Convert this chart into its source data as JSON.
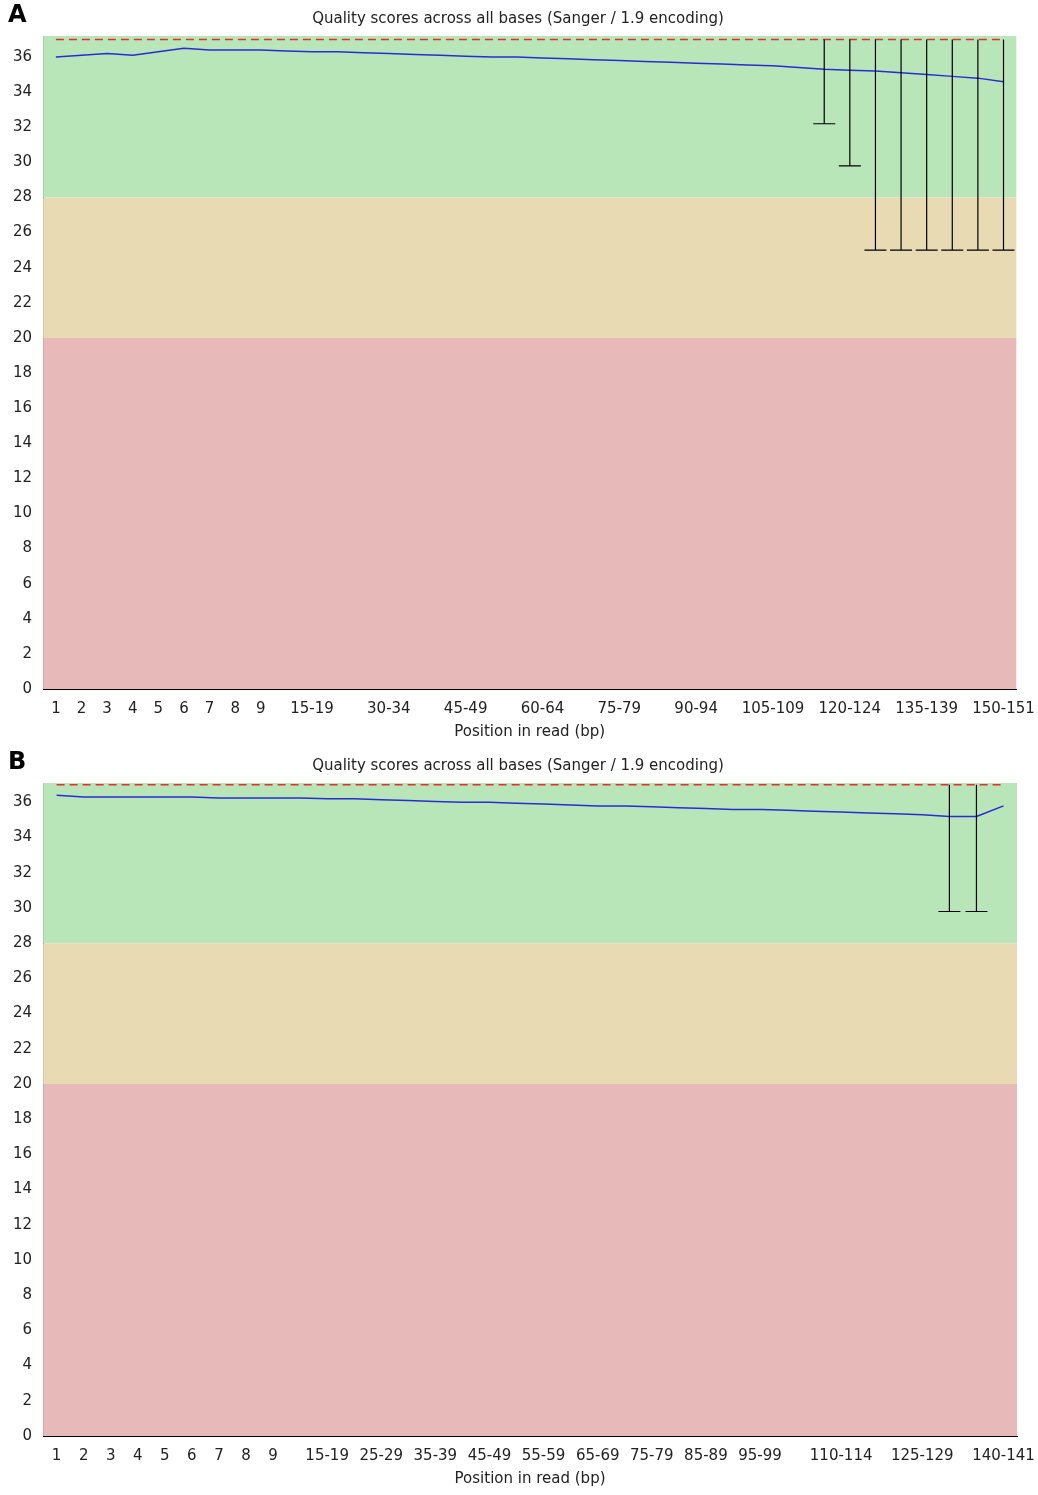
{
  "chart_data": [
    {
      "type": "line",
      "title": "Quality scores across all bases (Sanger / 1.9 encoding)",
      "xlabel": "Position in read (bp)",
      "annotations": [
        "A"
      ],
      "categories": [
        "1",
        "2",
        "3",
        "4",
        "5",
        "6",
        "7",
        "8",
        "9",
        null,
        "15-19",
        null,
        null,
        "30-34",
        null,
        null,
        "45-49",
        null,
        null,
        "60-64",
        null,
        null,
        "75-79",
        null,
        null,
        "90-94",
        null,
        null,
        "105-109",
        null,
        null,
        "120-124",
        null,
        null,
        "135-139",
        null,
        null,
        "150-151"
      ],
      "series": [
        {
          "name": null,
          "color": "#2b2bd6",
          "values": [
            36.0,
            36.1,
            36.2,
            36.1,
            36.3,
            36.5,
            36.4,
            36.4,
            36.4,
            36.35,
            36.3,
            36.3,
            36.25,
            36.2,
            36.15,
            36.1,
            36.05,
            36.0,
            36.0,
            35.95,
            35.9,
            35.85,
            35.8,
            35.75,
            35.7,
            35.65,
            35.6,
            35.55,
            35.5,
            35.4,
            35.3,
            35.25,
            35.2,
            35.1,
            35.0,
            34.9,
            34.8,
            34.6
          ],
          "errors": [
            null,
            null,
            null,
            null,
            null,
            null,
            null,
            null,
            null,
            null,
            null,
            null,
            null,
            null,
            null,
            null,
            null,
            null,
            null,
            null,
            null,
            null,
            null,
            null,
            null,
            null,
            null,
            null,
            null,
            null,
            [
              32.2,
              37
            ],
            [
              29.8,
              37
            ],
            [
              25,
              37
            ],
            [
              25,
              37
            ],
            [
              25,
              37
            ],
            [
              25,
              37
            ],
            [
              25,
              37
            ],
            [
              25,
              37
            ]
          ]
        },
        {
          "name": null,
          "color": "#e03030",
          "line_style": "dashed",
          "values": [
            37,
            37,
            37,
            37,
            37,
            37,
            37,
            37,
            37,
            37,
            37,
            37,
            37,
            37,
            37,
            37,
            37,
            37,
            37,
            37,
            37,
            37,
            37,
            37,
            37,
            37,
            37,
            37,
            37,
            37,
            37,
            37,
            37,
            37,
            37,
            37,
            37,
            37
          ]
        }
      ],
      "ylim": [
        0,
        37.2
      ],
      "yticks": [
        0,
        2,
        4,
        6,
        8,
        10,
        12,
        14,
        16,
        18,
        20,
        22,
        24,
        26,
        28,
        30,
        32,
        34,
        36
      ],
      "grid": false,
      "legend": false,
      "marker": "none",
      "bands": [
        {
          "axis": "y",
          "from": 28,
          "to": 37.2,
          "color": "#b9e6b9"
        },
        {
          "axis": "y",
          "from": 20,
          "to": 28,
          "color": "#e8dbb4"
        },
        {
          "axis": "y",
          "from": 0,
          "to": 20,
          "color": "#e8b9b9"
        }
      ]
    },
    {
      "type": "line",
      "title": "Quality scores across all bases (Sanger / 1.9 encoding)",
      "xlabel": "Position in read (bp)",
      "annotations": [
        "B"
      ],
      "categories": [
        "1",
        "2",
        "3",
        "4",
        "5",
        "6",
        "7",
        "8",
        "9",
        null,
        "15-19",
        null,
        "25-29",
        null,
        "35-39",
        null,
        "45-49",
        null,
        "55-59",
        null,
        "65-69",
        null,
        "75-79",
        null,
        "85-89",
        null,
        "95-99",
        null,
        null,
        "110-114",
        null,
        null,
        "125-129",
        null,
        null,
        "140-141"
      ],
      "series": [
        {
          "name": null,
          "color": "#2b2bd6",
          "values": [
            36.4,
            36.3,
            36.3,
            36.3,
            36.3,
            36.3,
            36.25,
            36.25,
            36.25,
            36.25,
            36.2,
            36.2,
            36.15,
            36.1,
            36.05,
            36.0,
            36.0,
            35.95,
            35.9,
            35.85,
            35.8,
            35.8,
            35.75,
            35.7,
            35.65,
            35.6,
            35.6,
            35.55,
            35.5,
            35.45,
            35.4,
            35.35,
            35.3,
            35.2,
            35.2,
            35.8
          ],
          "errors": [
            null,
            null,
            null,
            null,
            null,
            null,
            null,
            null,
            null,
            null,
            null,
            null,
            null,
            null,
            null,
            null,
            null,
            null,
            null,
            null,
            null,
            null,
            null,
            null,
            null,
            null,
            null,
            null,
            null,
            null,
            null,
            null,
            null,
            [
              29.8,
              37
            ],
            [
              29.8,
              37
            ],
            null
          ]
        },
        {
          "name": null,
          "color": "#e03030",
          "line_style": "dashed",
          "values": [
            37,
            37,
            37,
            37,
            37,
            37,
            37,
            37,
            37,
            37,
            37,
            37,
            37,
            37,
            37,
            37,
            37,
            37,
            37,
            37,
            37,
            37,
            37,
            37,
            37,
            37,
            37,
            37,
            37,
            37,
            37,
            37,
            37,
            37,
            37,
            37
          ]
        }
      ],
      "ylim": [
        0,
        37.1
      ],
      "yticks": [
        0,
        2,
        4,
        6,
        8,
        10,
        12,
        14,
        16,
        18,
        20,
        22,
        24,
        26,
        28,
        30,
        32,
        34,
        36
      ],
      "grid": false,
      "legend": false,
      "marker": "none",
      "bands": [
        {
          "axis": "y",
          "from": 28,
          "to": 37.1,
          "color": "#b9e6b9"
        },
        {
          "axis": "y",
          "from": 20,
          "to": 28,
          "color": "#e8dbb4"
        },
        {
          "axis": "y",
          "from": 0,
          "to": 20,
          "color": "#e8b9b9"
        }
      ]
    }
  ]
}
